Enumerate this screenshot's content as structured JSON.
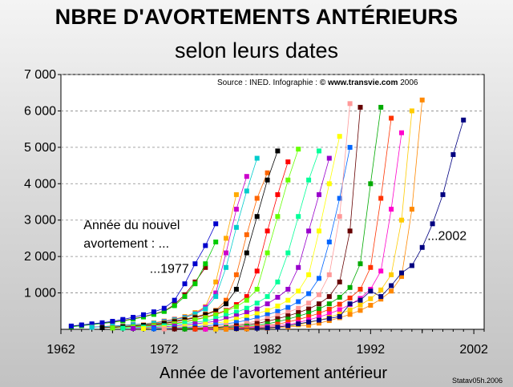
{
  "chart_data": {
    "type": "line",
    "title": "NBRE D'AVORTEMENTS ANTÉRIEURS",
    "subtitle": "selon leurs dates",
    "source_prefix": "Source : INED. Infographie : ",
    "source_site": "© www.transvie.com",
    "source_year": " 2006",
    "xlabel": "Année de l'avortement antérieur",
    "ylabel": "",
    "credit": "Statav05h.2006",
    "xlim": [
      1962,
      2003
    ],
    "ylim": [
      0,
      7000
    ],
    "x_ticks": [
      1962,
      1972,
      1982,
      1992,
      2002
    ],
    "x_tick_labels": [
      "1962",
      "1972",
      "1982",
      "1992",
      "2002"
    ],
    "y_ticks": [
      1000,
      2000,
      3000,
      4000,
      5000,
      6000,
      7000
    ],
    "y_tick_labels": [
      "1 000",
      "2 000",
      "3 000",
      "4 000",
      "5 000",
      "6 000",
      "7 000"
    ],
    "grid": "horizontal-dashed",
    "annotations": [
      {
        "text": "Année du nouvel",
        "x": 1964.2,
        "y": 2750
      },
      {
        "text": "avortement : ...",
        "x": 1964.2,
        "y": 2250
      },
      {
        "text": "...1977",
        "x": 1970.6,
        "y": 1550
      },
      {
        "text": "...2002",
        "x": 1997.5,
        "y": 2450
      }
    ],
    "series": [
      {
        "color": "#8b0000",
        "x": [
          1963,
          1964,
          1965,
          1966,
          1967,
          1968,
          1969,
          1970,
          1971,
          1972,
          1973,
          1974,
          1975,
          1976
        ],
        "y": [
          80,
          110,
          140,
          170,
          200,
          240,
          290,
          350,
          420,
          500,
          680,
          950,
          1300,
          1700
        ]
      },
      {
        "color": "#00cc00",
        "x": [
          1963,
          1964,
          1965,
          1966,
          1967,
          1968,
          1969,
          1970,
          1971,
          1972,
          1973,
          1974,
          1975,
          1976,
          1977
        ],
        "y": [
          70,
          100,
          130,
          160,
          190,
          230,
          280,
          340,
          410,
          490,
          650,
          900,
          1250,
          1800,
          2400
        ]
      },
      {
        "color": "#0000cc",
        "x": [
          1963,
          1964,
          1965,
          1966,
          1967,
          1968,
          1969,
          1970,
          1971,
          1972,
          1973,
          1974,
          1975,
          1976,
          1977
        ],
        "y": [
          90,
          120,
          150,
          180,
          220,
          270,
          330,
          400,
          480,
          580,
          800,
          1250,
          1800,
          2300,
          2900
        ]
      },
      {
        "color": "#ffaa00",
        "x": [
          1965,
          1967,
          1969,
          1971,
          1972,
          1973,
          1974,
          1975,
          1976,
          1977,
          1978,
          1979
        ],
        "y": [
          60,
          90,
          130,
          180,
          230,
          280,
          350,
          460,
          620,
          1300,
          2500,
          3700
        ]
      },
      {
        "color": "#cc00cc",
        "x": [
          1965,
          1967,
          1969,
          1971,
          1972,
          1973,
          1974,
          1975,
          1976,
          1977,
          1978,
          1979,
          1980
        ],
        "y": [
          60,
          90,
          130,
          170,
          220,
          270,
          330,
          430,
          600,
          1000,
          2100,
          3300,
          4200
        ]
      },
      {
        "color": "#00cccc",
        "x": [
          1965,
          1967,
          1969,
          1971,
          1972,
          1973,
          1974,
          1975,
          1976,
          1977,
          1978,
          1979,
          1980,
          1981
        ],
        "y": [
          55,
          85,
          125,
          165,
          210,
          260,
          320,
          420,
          560,
          900,
          1700,
          2800,
          3800,
          4700
        ]
      },
      {
        "color": "#ff6600",
        "x": [
          1966,
          1968,
          1970,
          1972,
          1973,
          1974,
          1975,
          1976,
          1977,
          1978,
          1979,
          1980,
          1981,
          1982
        ],
        "y": [
          50,
          80,
          120,
          180,
          230,
          280,
          340,
          420,
          520,
          800,
          1500,
          2600,
          3600,
          4300
        ]
      },
      {
        "color": "#000000",
        "x": [
          1966,
          1968,
          1970,
          1972,
          1973,
          1974,
          1975,
          1976,
          1977,
          1978,
          1979,
          1980,
          1981,
          1982,
          1983
        ],
        "y": [
          45,
          75,
          110,
          160,
          210,
          260,
          320,
          400,
          500,
          700,
          1100,
          2100,
          3100,
          4100,
          4900
        ]
      },
      {
        "color": "#ff0000",
        "x": [
          1967,
          1969,
          1971,
          1973,
          1974,
          1975,
          1976,
          1977,
          1978,
          1979,
          1980,
          1981,
          1982,
          1983,
          1984
        ],
        "y": [
          40,
          70,
          110,
          160,
          210,
          270,
          330,
          420,
          520,
          680,
          900,
          1600,
          2700,
          3700,
          4600
        ]
      },
      {
        "color": "#66ff00",
        "x": [
          1967,
          1969,
          1971,
          1973,
          1974,
          1975,
          1976,
          1977,
          1978,
          1979,
          1980,
          1981,
          1982,
          1983,
          1984,
          1985
        ],
        "y": [
          35,
          65,
          100,
          150,
          200,
          260,
          320,
          400,
          500,
          620,
          800,
          1100,
          2100,
          3100,
          4100,
          4950
        ]
      },
      {
        "color": "#00ff99",
        "x": [
          1968,
          1970,
          1972,
          1974,
          1976,
          1977,
          1978,
          1979,
          1980,
          1981,
          1982,
          1983,
          1984,
          1985,
          1986,
          1987
        ],
        "y": [
          30,
          60,
          100,
          160,
          230,
          300,
          380,
          470,
          580,
          720,
          900,
          1300,
          2100,
          3100,
          4100,
          4900
        ]
      },
      {
        "color": "#9900cc",
        "x": [
          1969,
          1971,
          1973,
          1975,
          1977,
          1978,
          1979,
          1980,
          1981,
          1982,
          1983,
          1984,
          1985,
          1986,
          1987,
          1988
        ],
        "y": [
          25,
          50,
          90,
          150,
          220,
          290,
          370,
          460,
          560,
          700,
          880,
          1100,
          1700,
          2700,
          3700,
          4700
        ]
      },
      {
        "color": "#ffff00",
        "x": [
          1970,
          1972,
          1974,
          1976,
          1978,
          1979,
          1980,
          1981,
          1982,
          1983,
          1984,
          1985,
          1986,
          1987,
          1988,
          1989
        ],
        "y": [
          20,
          45,
          80,
          140,
          210,
          280,
          350,
          430,
          520,
          640,
          800,
          1050,
          1500,
          2700,
          4000,
          5300
        ]
      },
      {
        "color": "#0066ff",
        "x": [
          1971,
          1973,
          1975,
          1977,
          1979,
          1980,
          1981,
          1982,
          1983,
          1984,
          1985,
          1986,
          1987,
          1988,
          1989,
          1990
        ],
        "y": [
          15,
          40,
          70,
          120,
          190,
          250,
          320,
          400,
          490,
          600,
          760,
          980,
          1400,
          2400,
          3600,
          5000
        ]
      },
      {
        "color": "#ff9999",
        "x": [
          1972,
          1974,
          1976,
          1978,
          1980,
          1981,
          1982,
          1983,
          1984,
          1985,
          1986,
          1987,
          1988,
          1989,
          1990
        ],
        "y": [
          12,
          35,
          60,
          110,
          170,
          230,
          300,
          380,
          470,
          580,
          720,
          950,
          1500,
          3100,
          6200
        ]
      },
      {
        "color": "#660000",
        "x": [
          1973,
          1975,
          1977,
          1979,
          1981,
          1982,
          1983,
          1984,
          1985,
          1986,
          1987,
          1988,
          1989,
          1990,
          1991
        ],
        "y": [
          10,
          30,
          55,
          100,
          160,
          220,
          290,
          370,
          460,
          560,
          700,
          900,
          1300,
          2700,
          6100
        ]
      },
      {
        "color": "#00aa00",
        "x": [
          1974,
          1976,
          1978,
          1980,
          1982,
          1983,
          1984,
          1985,
          1986,
          1987,
          1988,
          1989,
          1990,
          1991,
          1992,
          1993
        ],
        "y": [
          8,
          25,
          50,
          90,
          150,
          210,
          280,
          360,
          450,
          560,
          700,
          880,
          1150,
          1800,
          4000,
          6100
        ]
      },
      {
        "color": "#ff3300",
        "x": [
          1975,
          1977,
          1979,
          1981,
          1983,
          1984,
          1985,
          1986,
          1987,
          1988,
          1989,
          1990,
          1991,
          1992,
          1993,
          1994
        ],
        "y": [
          6,
          20,
          45,
          80,
          140,
          200,
          270,
          350,
          440,
          550,
          690,
          860,
          1100,
          1700,
          3600,
          5800
        ]
      },
      {
        "color": "#ff00cc",
        "x": [
          1976,
          1978,
          1980,
          1982,
          1984,
          1985,
          1986,
          1987,
          1988,
          1989,
          1990,
          1991,
          1992,
          1993,
          1994,
          1995
        ],
        "y": [
          5,
          18,
          40,
          75,
          130,
          190,
          260,
          340,
          430,
          540,
          680,
          850,
          1100,
          1600,
          3300,
          5400
        ]
      },
      {
        "color": "#ffcc00",
        "x": [
          1977,
          1979,
          1981,
          1983,
          1985,
          1986,
          1987,
          1988,
          1989,
          1990,
          1991,
          1992,
          1993,
          1994,
          1995,
          1996
        ],
        "y": [
          4,
          15,
          35,
          70,
          120,
          180,
          250,
          330,
          420,
          530,
          670,
          840,
          1080,
          1500,
          3000,
          6000
        ]
      },
      {
        "color": "#ff8800",
        "x": [
          1978,
          1980,
          1982,
          1984,
          1986,
          1987,
          1988,
          1989,
          1990,
          1991,
          1992,
          1993,
          1994,
          1995,
          1996,
          1997
        ],
        "y": [
          3,
          12,
          30,
          65,
          110,
          170,
          240,
          320,
          410,
          520,
          660,
          830,
          1050,
          1450,
          3300,
          6300
        ]
      },
      {
        "color": "#000080",
        "x": [
          1979,
          1981,
          1982,
          1983,
          1984,
          1985,
          1986,
          1987,
          1988,
          1989,
          1990,
          1991,
          1992,
          1993,
          1994,
          1995,
          1996,
          1997,
          1998,
          1999,
          2000,
          2001
        ],
        "y": [
          20,
          30,
          40,
          60,
          100,
          150,
          200,
          250,
          300,
          350,
          700,
          800,
          1050,
          900,
          1200,
          1550,
          1750,
          2250,
          2900,
          3700,
          4800,
          5750
        ]
      }
    ]
  }
}
